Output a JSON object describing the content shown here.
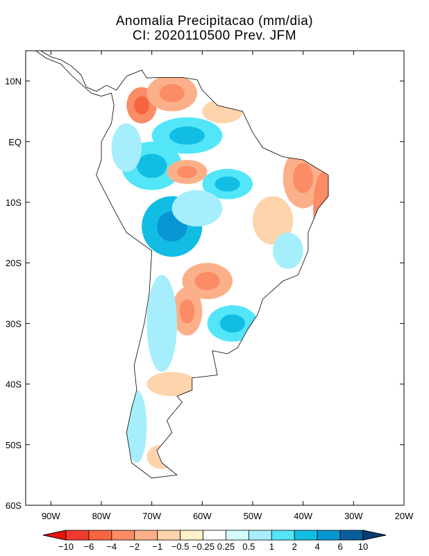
{
  "chart_data": {
    "type": "heatmap",
    "title": "Anomalia Precipitacao (mm/dia)",
    "subtitle": "CI: 2020110500 Prev. JFM",
    "lon_range": [
      -95,
      -20
    ],
    "lat_range": [
      -60,
      15
    ],
    "x_ticks": [
      "90W",
      "80W",
      "70W",
      "60W",
      "50W",
      "40W",
      "30W",
      "20W"
    ],
    "x_tick_values": [
      -90,
      -80,
      -70,
      -60,
      -50,
      -40,
      -30,
      -20
    ],
    "y_ticks": [
      "10N",
      "EQ",
      "10S",
      "20S",
      "30S",
      "40S",
      "50S",
      "60S"
    ],
    "y_tick_values": [
      10,
      0,
      -10,
      -20,
      -30,
      -40,
      -50,
      -60
    ],
    "colorbar": {
      "labels": [
        "-10",
        "-6",
        "-4",
        "-2",
        "-1",
        "-0.5",
        "-0.25",
        "0.25",
        "0.5",
        "1",
        "2",
        "4",
        "6",
        "10"
      ],
      "colors": [
        "#e8140f",
        "#f03a2e",
        "#f7653f",
        "#fb8c66",
        "#fcb08a",
        "#fdd4ac",
        "#fff0c8",
        "#ffffff",
        "#d4fafc",
        "#a6eefc",
        "#52e6f8",
        "#12bde4",
        "#0896d2",
        "#065d9a",
        "#083e78"
      ]
    },
    "anomaly_regions": [
      {
        "lon": -72,
        "lat": 6,
        "rx": 3,
        "ry": 3,
        "value": -3
      },
      {
        "lon": -66,
        "lat": 8,
        "rx": 5,
        "ry": 3,
        "value": -1.5
      },
      {
        "lon": -56,
        "lat": 5,
        "rx": 4,
        "ry": 2,
        "value": -0.7
      },
      {
        "lon": -63,
        "lat": 1,
        "rx": 7,
        "ry": 3,
        "value": 1.5
      },
      {
        "lon": -70,
        "lat": -4,
        "rx": 6,
        "ry": 4,
        "value": 1.5
      },
      {
        "lon": -63,
        "lat": -5,
        "rx": 4,
        "ry": 2,
        "value": -1.5
      },
      {
        "lon": -55,
        "lat": -7,
        "rx": 5,
        "ry": 2.5,
        "value": 1.5
      },
      {
        "lon": -75,
        "lat": -1,
        "rx": 3,
        "ry": 4,
        "value": 0.7
      },
      {
        "lon": -66,
        "lat": -14,
        "rx": 6,
        "ry": 5,
        "value": 3
      },
      {
        "lon": -61,
        "lat": -11,
        "rx": 5,
        "ry": 3,
        "value": 1
      },
      {
        "lon": -40,
        "lat": -6,
        "rx": 4,
        "ry": 5,
        "value": -1.2
      },
      {
        "lon": -36,
        "lat": -11,
        "rx": 2,
        "ry": 6,
        "value": -2
      },
      {
        "lon": -46,
        "lat": -13,
        "rx": 4,
        "ry": 4,
        "value": -0.7
      },
      {
        "lon": -43,
        "lat": -18,
        "rx": 3,
        "ry": 3,
        "value": 1
      },
      {
        "lon": -59,
        "lat": -23,
        "rx": 5,
        "ry": 3,
        "value": -1.2
      },
      {
        "lon": -63,
        "lat": -28,
        "rx": 3,
        "ry": 4,
        "value": -1.5
      },
      {
        "lon": -54,
        "lat": -30,
        "rx": 5,
        "ry": 3,
        "value": 1.5
      },
      {
        "lon": -68,
        "lat": -30,
        "rx": 3,
        "ry": 8,
        "value": 1
      },
      {
        "lon": -66,
        "lat": -40,
        "rx": 5,
        "ry": 2,
        "value": -0.7
      },
      {
        "lon": -73,
        "lat": -47,
        "rx": 2,
        "ry": 6,
        "value": 1
      },
      {
        "lon": -68,
        "lat": -52,
        "rx": 3,
        "ry": 2,
        "value": -0.7
      }
    ]
  }
}
